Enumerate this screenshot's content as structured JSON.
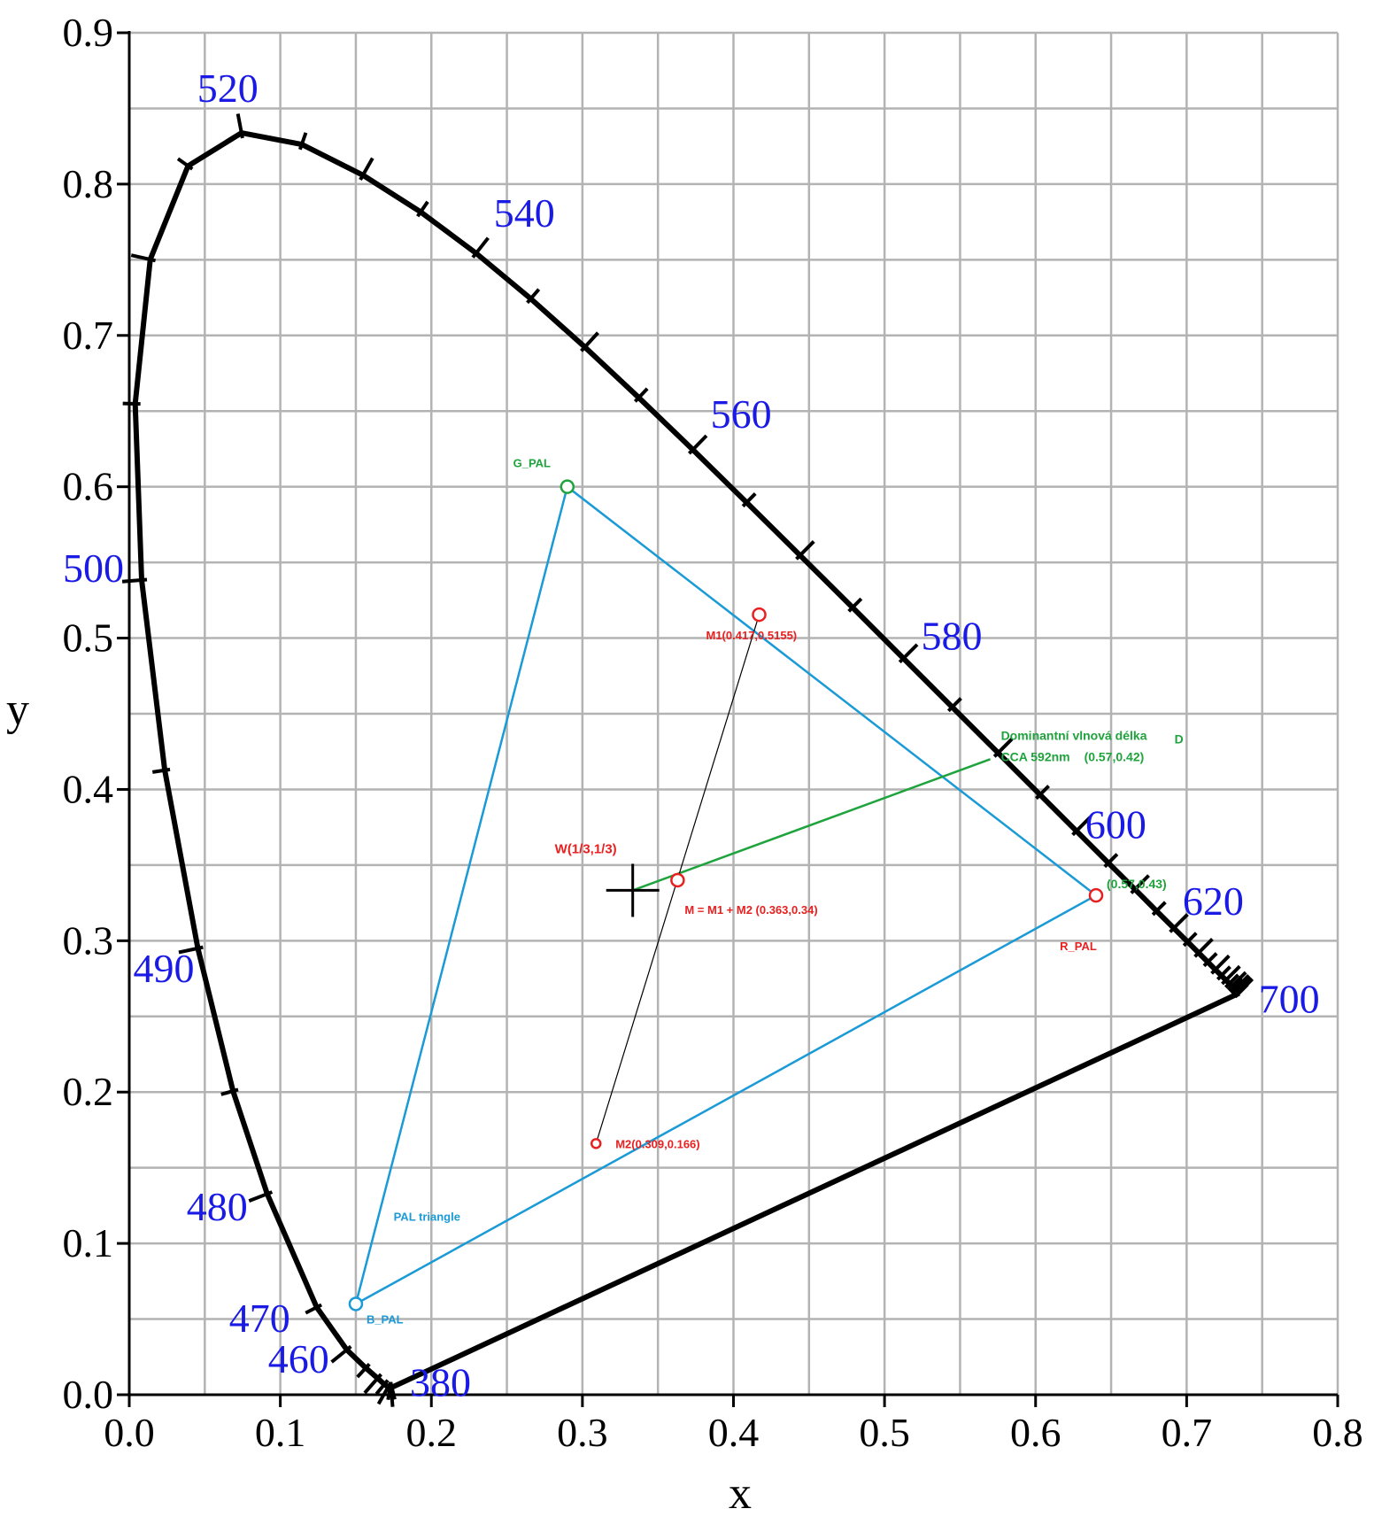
{
  "chart_data": {
    "type": "scatter",
    "title": "",
    "xlabel": "x",
    "ylabel": "y",
    "xlim": [
      0,
      0.8
    ],
    "ylim": [
      0,
      0.9
    ],
    "grid": true,
    "x_ticks": [
      "0.0",
      "0.1",
      "0.2",
      "0.3",
      "0.4",
      "0.5",
      "0.6",
      "0.7",
      "0.8"
    ],
    "y_ticks": [
      "0.0",
      "0.1",
      "0.2",
      "0.3",
      "0.4",
      "0.5",
      "0.6",
      "0.7",
      "0.8",
      "0.9"
    ],
    "spectral_locus": [
      [
        0.1741,
        0.005
      ],
      [
        0.1738,
        0.0049
      ],
      [
        0.1733,
        0.0048
      ],
      [
        0.1726,
        0.0048
      ],
      [
        0.1714,
        0.0051
      ],
      [
        0.1689,
        0.0069
      ],
      [
        0.1644,
        0.0109
      ],
      [
        0.1566,
        0.0177
      ],
      [
        0.144,
        0.0297
      ],
      [
        0.1241,
        0.0578
      ],
      [
        0.0913,
        0.1327
      ],
      [
        0.0687,
        0.2007
      ],
      [
        0.0454,
        0.295
      ],
      [
        0.0235,
        0.4127
      ],
      [
        0.0082,
        0.5384
      ],
      [
        0.0039,
        0.6548
      ],
      [
        0.0139,
        0.7502
      ],
      [
        0.0389,
        0.812
      ],
      [
        0.0743,
        0.8338
      ],
      [
        0.1142,
        0.8262
      ],
      [
        0.1547,
        0.8059
      ],
      [
        0.1929,
        0.7816
      ],
      [
        0.2296,
        0.7543
      ],
      [
        0.2658,
        0.7243
      ],
      [
        0.3016,
        0.6923
      ],
      [
        0.3373,
        0.6589
      ],
      [
        0.3731,
        0.6245
      ],
      [
        0.4087,
        0.5896
      ],
      [
        0.4441,
        0.5547
      ],
      [
        0.4788,
        0.5202
      ],
      [
        0.5125,
        0.4866
      ],
      [
        0.5448,
        0.4544
      ],
      [
        0.5752,
        0.4242
      ],
      [
        0.6029,
        0.3965
      ],
      [
        0.627,
        0.3725
      ],
      [
        0.6482,
        0.3514
      ],
      [
        0.6658,
        0.334
      ],
      [
        0.6801,
        0.3197
      ],
      [
        0.6915,
        0.3083
      ],
      [
        0.7006,
        0.2993
      ],
      [
        0.7079,
        0.292
      ],
      [
        0.714,
        0.2859
      ],
      [
        0.719,
        0.2809
      ],
      [
        0.723,
        0.277
      ],
      [
        0.726,
        0.274
      ],
      [
        0.7283,
        0.2717
      ],
      [
        0.73,
        0.27
      ],
      [
        0.7311,
        0.2689
      ],
      [
        0.732,
        0.268
      ],
      [
        0.7327,
        0.2673
      ],
      [
        0.7334,
        0.2666
      ],
      [
        0.734,
        0.266
      ],
      [
        0.7344,
        0.2656
      ],
      [
        0.7346,
        0.2654
      ],
      [
        0.7347,
        0.2653
      ]
    ],
    "wavelength_labels": [
      "520",
      "540",
      "560",
      "580",
      "600",
      "620",
      "700",
      "500",
      "490",
      "480",
      "470",
      "460",
      "380"
    ],
    "series": [
      {
        "name": "PAL triangle",
        "color": "#1a9ad6",
        "x": [
          0.15,
          0.29,
          0.64
        ],
        "y": [
          0.06,
          0.6,
          0.33
        ]
      }
    ],
    "points": [
      {
        "label": "G_PAL",
        "x": 0.29,
        "y": 0.6,
        "color": "#1fa33c"
      },
      {
        "label": "R_PAL",
        "x": 0.64,
        "y": 0.33,
        "color": "#e82020"
      },
      {
        "label": "B_PAL",
        "x": 0.15,
        "y": 0.06,
        "color": "#1a9ad6"
      },
      {
        "label": "M1(0.417,0.5155)",
        "x": 0.417,
        "y": 0.5155,
        "color": "#e82020"
      },
      {
        "label": "M2(0.309,0.166)",
        "x": 0.309,
        "y": 0.166,
        "color": "#e82020"
      },
      {
        "label": "M = M1 + M2 (0.363,0.34)",
        "x": 0.363,
        "y": 0.34,
        "color": "#e82020"
      },
      {
        "label": "W(1/3,1/3)",
        "x": 0.3333,
        "y": 0.3333,
        "color": "#e82020"
      }
    ],
    "dominant_line": {
      "from": [
        0.3333,
        0.3333
      ],
      "to": [
        0.57,
        0.42
      ],
      "color": "#1fa33c"
    },
    "mix_line": {
      "from": [
        0.309,
        0.166
      ],
      "to": [
        0.417,
        0.5155
      ],
      "color": "#000000"
    },
    "annotations": {
      "dominant_1": "Dominantní vlnová délka",
      "dominant_D": "D",
      "dominant_2": "CCA 592nm",
      "dominant_3": "(0.57,0.42)",
      "r_coord": "(0.57,0.43)"
    }
  }
}
